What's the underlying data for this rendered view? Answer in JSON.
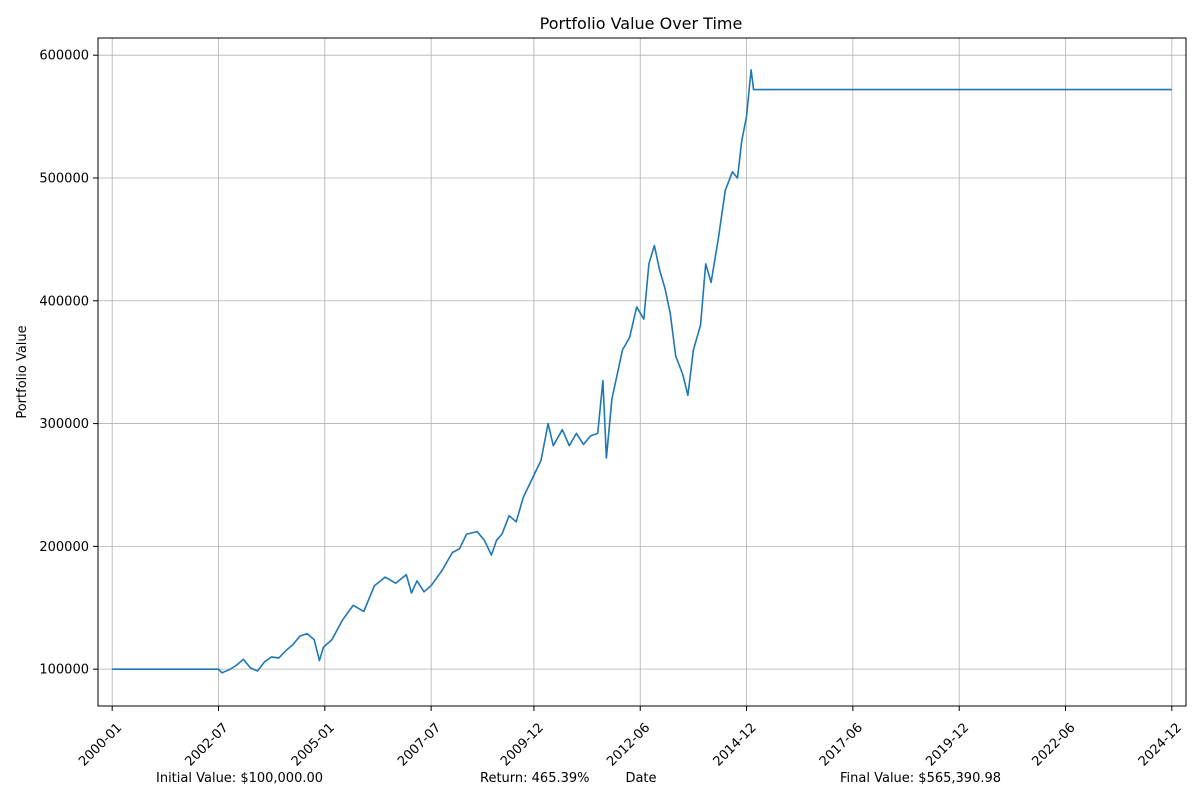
{
  "chart_data": {
    "type": "line",
    "title": "Portfolio Value Over Time",
    "xlabel": "Date",
    "ylabel": "Portfolio Value",
    "x_range": [
      "1999-09-01",
      "2025-04-01"
    ],
    "ylim": [
      70000,
      614000
    ],
    "grid": true,
    "line_color": "#1f77b4",
    "x_ticks": [
      "2000-01",
      "2002-07",
      "2005-01",
      "2007-07",
      "2009-12",
      "2012-06",
      "2014-12",
      "2017-06",
      "2019-12",
      "2022-06",
      "2024-12"
    ],
    "y_ticks": [
      100000,
      200000,
      300000,
      400000,
      500000,
      600000
    ],
    "series": [
      {
        "points": [
          [
            "2000-01-01",
            100000
          ],
          [
            "2002-07-01",
            100000
          ],
          [
            "2002-08-01",
            97000
          ],
          [
            "2002-10-01",
            99500
          ],
          [
            "2002-12-01",
            103000
          ],
          [
            "2003-02-01",
            108000
          ],
          [
            "2003-04-01",
            101000
          ],
          [
            "2003-06-01",
            98500
          ],
          [
            "2003-08-01",
            106000
          ],
          [
            "2003-10-01",
            110000
          ],
          [
            "2003-12-01",
            109000
          ],
          [
            "2004-02-01",
            115000
          ],
          [
            "2004-04-01",
            120000
          ],
          [
            "2004-06-01",
            127000
          ],
          [
            "2004-08-01",
            129000
          ],
          [
            "2004-10-01",
            124000
          ],
          [
            "2004-11-15",
            107000
          ],
          [
            "2004-12-20",
            118000
          ],
          [
            "2005-03-01",
            124000
          ],
          [
            "2005-06-01",
            140000
          ],
          [
            "2005-09-01",
            152000
          ],
          [
            "2005-12-01",
            147000
          ],
          [
            "2006-03-01",
            168000
          ],
          [
            "2006-06-01",
            175000
          ],
          [
            "2006-09-01",
            170000
          ],
          [
            "2006-12-01",
            177000
          ],
          [
            "2007-01-15",
            162000
          ],
          [
            "2007-03-01",
            172000
          ],
          [
            "2007-05-01",
            163000
          ],
          [
            "2007-07-01",
            168000
          ],
          [
            "2007-10-01",
            180000
          ],
          [
            "2008-01-01",
            195000
          ],
          [
            "2008-03-01",
            198000
          ],
          [
            "2008-05-01",
            210000
          ],
          [
            "2008-08-01",
            212000
          ],
          [
            "2008-10-01",
            205000
          ],
          [
            "2008-12-01",
            193000
          ],
          [
            "2009-01-15",
            205000
          ],
          [
            "2009-03-01",
            210000
          ],
          [
            "2009-05-01",
            225000
          ],
          [
            "2009-07-01",
            220000
          ],
          [
            "2009-09-01",
            240000
          ],
          [
            "2009-12-01",
            258000
          ],
          [
            "2010-02-01",
            270000
          ],
          [
            "2010-04-01",
            300000
          ],
          [
            "2010-05-15",
            282000
          ],
          [
            "2010-08-01",
            295000
          ],
          [
            "2010-10-01",
            282000
          ],
          [
            "2010-12-01",
            292000
          ],
          [
            "2011-02-01",
            283000
          ],
          [
            "2011-04-01",
            290000
          ],
          [
            "2011-06-01",
            292000
          ],
          [
            "2011-07-15",
            335000
          ],
          [
            "2011-08-15",
            272000
          ],
          [
            "2011-10-01",
            320000
          ],
          [
            "2012-01-01",
            360000
          ],
          [
            "2012-03-01",
            370000
          ],
          [
            "2012-05-01",
            395000
          ],
          [
            "2012-07-01",
            385000
          ],
          [
            "2012-08-15",
            430000
          ],
          [
            "2012-10-01",
            445000
          ],
          [
            "2012-11-15",
            425000
          ],
          [
            "2013-01-01",
            410000
          ],
          [
            "2013-02-15",
            390000
          ],
          [
            "2013-04-01",
            355000
          ],
          [
            "2013-06-01",
            340000
          ],
          [
            "2013-07-15",
            323000
          ],
          [
            "2013-09-01",
            360000
          ],
          [
            "2013-11-01",
            380000
          ],
          [
            "2013-12-15",
            430000
          ],
          [
            "2014-02-01",
            415000
          ],
          [
            "2014-04-01",
            450000
          ],
          [
            "2014-06-01",
            490000
          ],
          [
            "2014-08-01",
            505000
          ],
          [
            "2014-09-15",
            500000
          ],
          [
            "2014-10-20",
            530000
          ],
          [
            "2014-12-01",
            550000
          ],
          [
            "2015-01-10",
            588000
          ],
          [
            "2015-02-01",
            572000
          ],
          [
            "2024-12-01",
            572000
          ]
        ]
      }
    ]
  },
  "footer": {
    "initial_value": "Initial Value: $100,000.00",
    "return": "Return: 465.39%",
    "final_value": "Final Value: $565,390.98"
  }
}
